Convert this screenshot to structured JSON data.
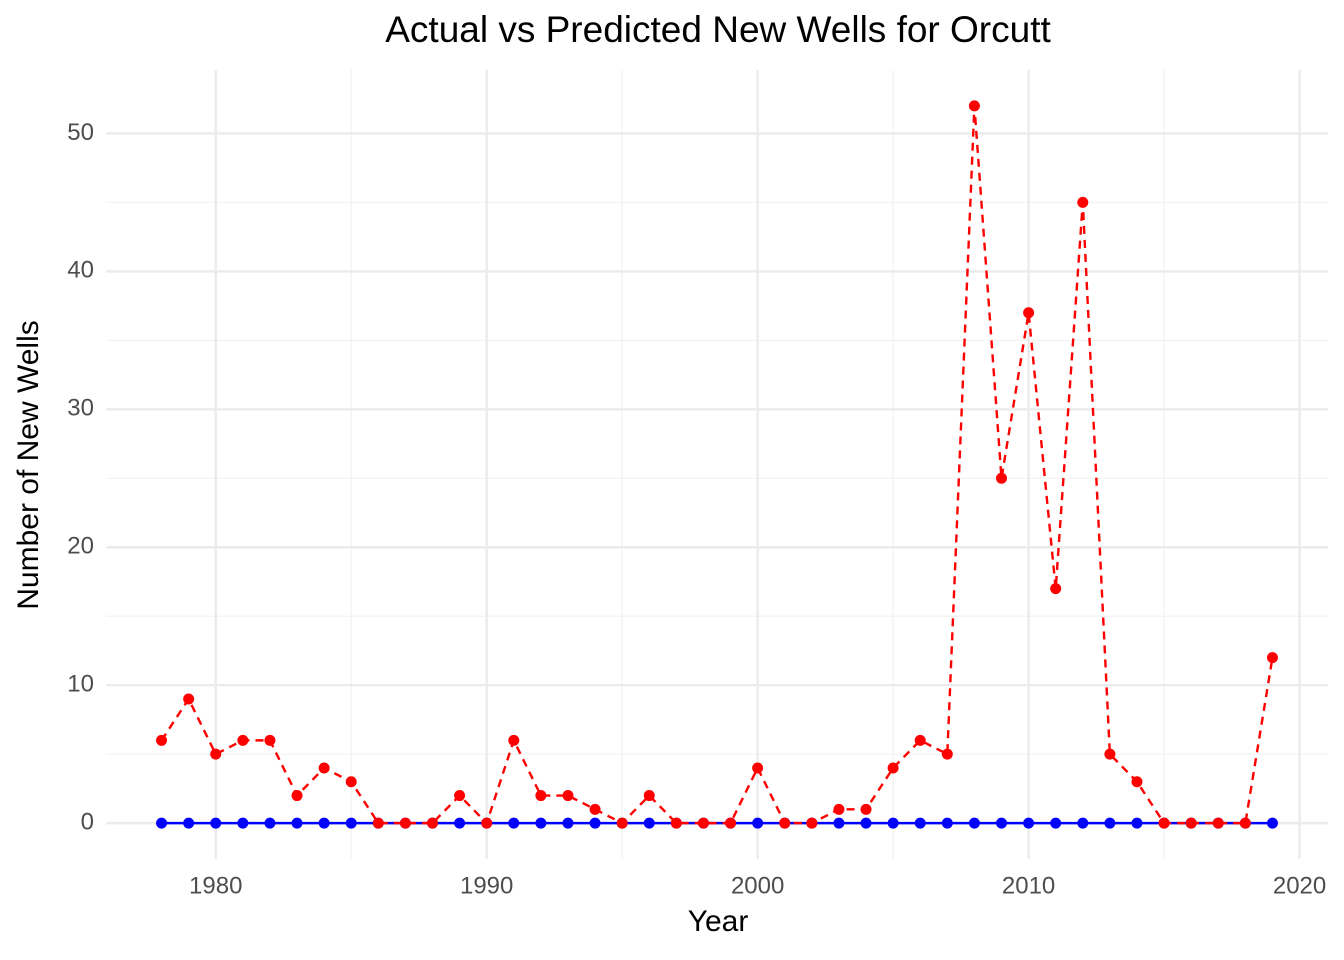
{
  "chart_data": {
    "type": "line",
    "title": "Actual vs Predicted New Wells for Orcutt",
    "x_label": "Year",
    "y_label": "Number of New Wells",
    "x": [
      1978,
      1979,
      1980,
      1981,
      1982,
      1983,
      1984,
      1985,
      1986,
      1987,
      1988,
      1989,
      1990,
      1991,
      1992,
      1993,
      1994,
      1995,
      1996,
      1997,
      1998,
      1999,
      2000,
      2001,
      2002,
      2003,
      2004,
      2005,
      2006,
      2007,
      2008,
      2009,
      2010,
      2011,
      2012,
      2013,
      2014,
      2015,
      2016,
      2017,
      2018,
      2019
    ],
    "series": [
      {
        "color": "#0000ff",
        "line_style": "solid",
        "values": [
          0,
          0,
          0,
          0,
          0,
          0,
          0,
          0,
          0,
          0,
          0,
          0,
          0,
          0,
          0,
          0,
          0,
          0,
          0,
          0,
          0,
          0,
          0,
          0,
          0,
          0,
          0,
          0,
          0,
          0,
          0,
          0,
          0,
          0,
          0,
          0,
          0,
          0,
          0,
          0,
          0,
          0
        ]
      },
      {
        "color": "#ff0000",
        "line_style": "dashed",
        "values": [
          6,
          9,
          5,
          6,
          6,
          2,
          4,
          3,
          0,
          0,
          0,
          2,
          0,
          6,
          2,
          2,
          1,
          0,
          2,
          0,
          0,
          0,
          4,
          0,
          0,
          1,
          1,
          4,
          6,
          5,
          52,
          25,
          37,
          17,
          45,
          5,
          3,
          0,
          0,
          0,
          0,
          12
        ]
      }
    ],
    "xlim": [
      1975.95,
      2021.05
    ],
    "ylim": [
      -2.6,
      54.6
    ],
    "xticks": [
      1980,
      1990,
      2000,
      2010,
      2020
    ],
    "yticks": [
      0,
      10,
      20,
      30,
      40,
      50
    ],
    "x_minor_grid": [
      1985,
      1995,
      2005,
      2015
    ],
    "y_minor_grid": [
      5,
      15,
      25,
      35,
      45
    ],
    "grid": true
  }
}
